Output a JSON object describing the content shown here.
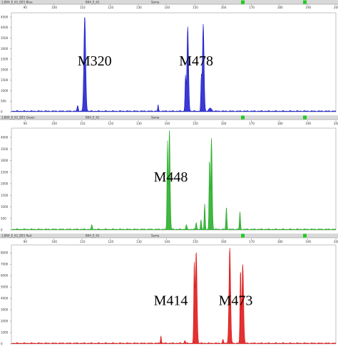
{
  "chart_data": [
    {
      "type": "line",
      "panel": "top",
      "header": {
        "left": "1,B04_E_61_DE1 Blue",
        "mid1": "B04_E_61",
        "mid2": "Sema"
      },
      "color": "#1a1acc",
      "x_ticks": [
        "90",
        "100",
        "110",
        "120",
        "130",
        "140",
        "150",
        "160",
        "170",
        "180",
        "190",
        "200"
      ],
      "y_ticks": [
        "4500",
        "4000",
        "3500",
        "3000",
        "2500",
        "2000",
        "1500",
        "1000",
        "500",
        "0"
      ],
      "xlim": [
        85,
        200
      ],
      "ylim": [
        0,
        4700
      ],
      "peaks": [
        {
          "x": 111,
          "h": 4500,
          "w": 0.9
        },
        {
          "x": 108.5,
          "h": 250,
          "w": 0.6
        },
        {
          "x": 146.7,
          "h": 1650,
          "w": 0.5
        },
        {
          "x": 147.5,
          "h": 4000,
          "w": 0.8
        },
        {
          "x": 152.3,
          "h": 1500,
          "w": 0.5
        },
        {
          "x": 153.0,
          "h": 4150,
          "w": 0.8
        },
        {
          "x": 137,
          "h": 300,
          "w": 0.4
        },
        {
          "x": 155.5,
          "h": 150,
          "w": 1.2
        }
      ],
      "labels": [
        {
          "text": "M320",
          "x": 114.5,
          "y": 2200
        },
        {
          "text": "M478",
          "x": 150.5,
          "y": 2200
        }
      ]
    },
    {
      "type": "line",
      "panel": "middle",
      "header": {
        "left": "1,B04_E_61_DE1 Green",
        "mid1": "B04_E_61",
        "mid2": "Sema"
      },
      "color": "#22aa22",
      "x_ticks": [
        "90",
        "100",
        "110",
        "120",
        "130",
        "140",
        "150",
        "160",
        "170",
        "180",
        "190",
        "200"
      ],
      "y_ticks": [
        "4000",
        "3500",
        "3000",
        "2500",
        "2000",
        "1500",
        "1000",
        "500",
        "0"
      ],
      "xlim": [
        85,
        200
      ],
      "ylim": [
        0,
        4400
      ],
      "peaks": [
        {
          "x": 140.3,
          "h": 3800,
          "w": 0.45
        },
        {
          "x": 141.0,
          "h": 4300,
          "w": 0.7
        },
        {
          "x": 155.2,
          "h": 3000,
          "w": 0.45
        },
        {
          "x": 155.9,
          "h": 3950,
          "w": 0.7
        },
        {
          "x": 153.5,
          "h": 1100,
          "w": 0.5
        },
        {
          "x": 152.2,
          "h": 400,
          "w": 0.5
        },
        {
          "x": 150.5,
          "h": 300,
          "w": 0.5
        },
        {
          "x": 161.2,
          "h": 950,
          "w": 0.5
        },
        {
          "x": 166.0,
          "h": 750,
          "w": 0.5
        },
        {
          "x": 113.5,
          "h": 180,
          "w": 0.5
        },
        {
          "x": 147.0,
          "h": 200,
          "w": 0.5
        }
      ],
      "labels": [
        {
          "text": "M448",
          "x": 141.5,
          "y": 2100
        }
      ]
    },
    {
      "type": "line",
      "panel": "bottom",
      "header": {
        "left": "1,B04_E_61_DE1 Red",
        "mid1": "B04_E_61",
        "mid2": "Sema"
      },
      "color": "#dd1111",
      "x_ticks": [
        "90",
        "100",
        "110",
        "120",
        "130",
        "140",
        "150",
        "160",
        "170",
        "180",
        "190",
        "200"
      ],
      "y_ticks": [
        "8000",
        "7000",
        "6000",
        "5000",
        "4000",
        "3000",
        "2000",
        "1000",
        "0"
      ],
      "xlim": [
        85,
        200
      ],
      "ylim": [
        0,
        8700
      ],
      "peaks": [
        {
          "x": 149.8,
          "h": 6800,
          "w": 0.5
        },
        {
          "x": 150.5,
          "h": 8100,
          "w": 0.8
        },
        {
          "x": 162.4,
          "h": 8400,
          "w": 0.8
        },
        {
          "x": 166.2,
          "h": 6400,
          "w": 0.5
        },
        {
          "x": 167.0,
          "h": 7000,
          "w": 0.8
        },
        {
          "x": 138.0,
          "h": 700,
          "w": 0.4
        },
        {
          "x": 146.5,
          "h": 250,
          "w": 0.5
        },
        {
          "x": 160.0,
          "h": 300,
          "w": 0.5
        }
      ],
      "labels": [
        {
          "text": "M414",
          "x": 141.5,
          "y": 3400
        },
        {
          "text": "M473",
          "x": 164.5,
          "y": 3400
        }
      ]
    }
  ]
}
